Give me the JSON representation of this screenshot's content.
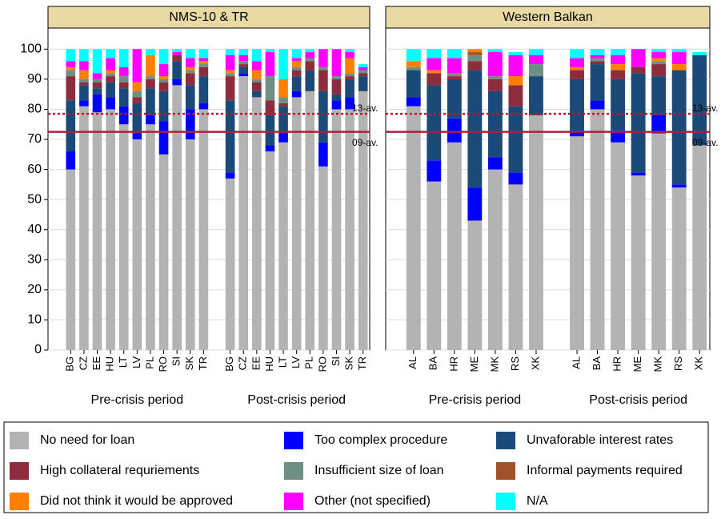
{
  "chart_data": [
    {
      "type": "stacked_bar",
      "title": "NMS-10 & TR",
      "ylim": [
        0,
        107
      ],
      "yticks": [
        0,
        10,
        20,
        30,
        40,
        50,
        60,
        70,
        80,
        90,
        100
      ],
      "ytick_labels": true,
      "grid": true,
      "categories": [
        "BG",
        "CZ",
        "EE",
        "HU",
        "LT",
        "LV",
        "PL",
        "RO",
        "SI",
        "SK",
        "TR",
        null,
        "BG",
        "CZ",
        "EE",
        "HU",
        "LT",
        "LV",
        "PL",
        "RO",
        "SI",
        "SK",
        "TR"
      ],
      "group_labels": [
        "Pre-crisis period",
        "Post-crisis period"
      ],
      "hlines": [
        {
          "value": 78.5,
          "label": "13-av.",
          "style": "dotted",
          "color": "#c8102e"
        },
        {
          "value": 72.5,
          "label": "09-av.",
          "style": "solid",
          "color": "#b01e3c"
        }
      ],
      "series": [
        {
          "name": "No need for loan",
          "color": "#b3b3b3",
          "values": [
            60,
            81,
            79,
            80,
            75,
            70,
            75,
            65,
            88,
            70,
            80,
            null,
            57,
            91,
            84,
            66,
            69,
            84,
            86,
            61,
            80,
            80,
            86
          ]
        },
        {
          "name": "Too complex procedure",
          "color": "#0000ff",
          "values": [
            6,
            2,
            6,
            4,
            6,
            2,
            3,
            11,
            2,
            10,
            2,
            null,
            2,
            1,
            0,
            2,
            3,
            2,
            0,
            8,
            3,
            4,
            0
          ]
        },
        {
          "name": "Unvaforable interest rates",
          "color": "#1b4a78",
          "values": [
            17,
            5,
            2,
            5,
            6,
            10,
            9,
            10,
            6,
            8,
            9,
            null,
            24,
            2,
            2,
            10,
            9,
            5,
            7,
            17,
            2,
            6,
            5
          ]
        },
        {
          "name": "High collateral requriements",
          "color": "#8c2c3c",
          "values": [
            8,
            1,
            2,
            2,
            2,
            2,
            3,
            3,
            2,
            4,
            3,
            null,
            8,
            1,
            3,
            5,
            1,
            2,
            3,
            7,
            5,
            1,
            1
          ]
        },
        {
          "name": "Insufficient size of loan",
          "color": "#6e9082",
          "values": [
            2,
            1,
            1,
            1,
            2,
            2,
            1,
            1,
            0,
            1,
            1,
            null,
            1,
            1,
            1,
            8,
            2,
            1,
            1,
            1,
            1,
            1,
            1
          ]
        },
        {
          "name": "Informal payments required",
          "color": "#a0522d",
          "values": [
            0,
            0,
            0,
            0,
            0,
            0,
            0,
            0,
            0,
            0,
            0,
            null,
            0,
            0,
            0,
            0,
            0,
            0,
            0,
            0,
            0,
            0,
            0
          ]
        },
        {
          "name": "Did not think it would be approved",
          "color": "#ff8000",
          "values": [
            1,
            3,
            0,
            1,
            0,
            3,
            7,
            1,
            0,
            1,
            1,
            null,
            1,
            0,
            3,
            0,
            6,
            2,
            0,
            0,
            0,
            5,
            0
          ]
        },
        {
          "name": "Other (not specified)",
          "color": "#ff00ff",
          "values": [
            2,
            3,
            2,
            4,
            3,
            11,
            0,
            4,
            1,
            3,
            1,
            null,
            5,
            2,
            3,
            8,
            0,
            1,
            2,
            6,
            9,
            2,
            1
          ]
        },
        {
          "name": "N/A",
          "color": "#00ffff",
          "values": [
            4,
            4,
            8,
            3,
            6,
            0,
            2,
            5,
            1,
            3,
            3,
            null,
            2,
            2,
            4,
            1,
            10,
            3,
            1,
            0,
            0,
            1,
            1
          ]
        }
      ]
    },
    {
      "type": "stacked_bar",
      "title": "Western Balkan",
      "ylim": [
        0,
        107
      ],
      "yticks": [
        0,
        10,
        20,
        30,
        40,
        50,
        60,
        70,
        80,
        90,
        100
      ],
      "ytick_labels": false,
      "grid": true,
      "categories": [
        "AL",
        "BA",
        "HR",
        "ME",
        "MK",
        "RS",
        "XK",
        null,
        "AL",
        "BA",
        "HR",
        "ME",
        "MK",
        "RS",
        "XK"
      ],
      "group_labels": [
        "Pre-crisis period",
        "Post-crisis period"
      ],
      "hlines": [
        {
          "value": 78.5,
          "label": "13-av.",
          "style": "dotted",
          "color": "#c8102e"
        },
        {
          "value": 72.5,
          "label": "09-av.",
          "style": "solid",
          "color": "#b01e3c"
        }
      ],
      "series": [
        {
          "color": "#b3b3b3",
          "values": [
            81,
            56,
            69,
            43,
            60,
            55,
            78,
            null,
            71,
            80,
            69,
            58,
            72,
            54,
            68
          ]
        },
        {
          "color": "#0000ff",
          "values": [
            3,
            7,
            8,
            11,
            4,
            4,
            0,
            null,
            2,
            3,
            4,
            1,
            6,
            1,
            0
          ]
        },
        {
          "color": "#1b4a78",
          "values": [
            9,
            25,
            13,
            39,
            22,
            22,
            13,
            null,
            17,
            12,
            17,
            33,
            13,
            38,
            30
          ]
        },
        {
          "color": "#8c2c3c",
          "values": [
            0,
            4,
            1,
            3,
            4,
            7,
            0,
            null,
            3,
            1,
            3,
            2,
            4,
            0,
            0
          ]
        },
        {
          "color": "#6e9082",
          "values": [
            1,
            0,
            1,
            2,
            1,
            0,
            4,
            null,
            0,
            1,
            0,
            0,
            1,
            0,
            0
          ]
        },
        {
          "color": "#a0522d",
          "values": [
            0,
            0,
            0,
            1,
            0,
            0,
            0,
            null,
            0,
            0,
            0,
            0,
            0,
            0,
            0
          ]
        },
        {
          "color": "#ff8000",
          "values": [
            2,
            1,
            0,
            1,
            0,
            3,
            0,
            null,
            1,
            0,
            2,
            0,
            1,
            2,
            0
          ]
        },
        {
          "color": "#ff00ff",
          "values": [
            0,
            4,
            5,
            0,
            8,
            7,
            3,
            null,
            3,
            1,
            3,
            6,
            2,
            4,
            0
          ]
        },
        {
          "color": "#00ffff",
          "values": [
            4,
            3,
            3,
            0,
            1,
            1,
            2,
            null,
            3,
            2,
            2,
            0,
            1,
            1,
            1
          ]
        }
      ]
    }
  ]
}
